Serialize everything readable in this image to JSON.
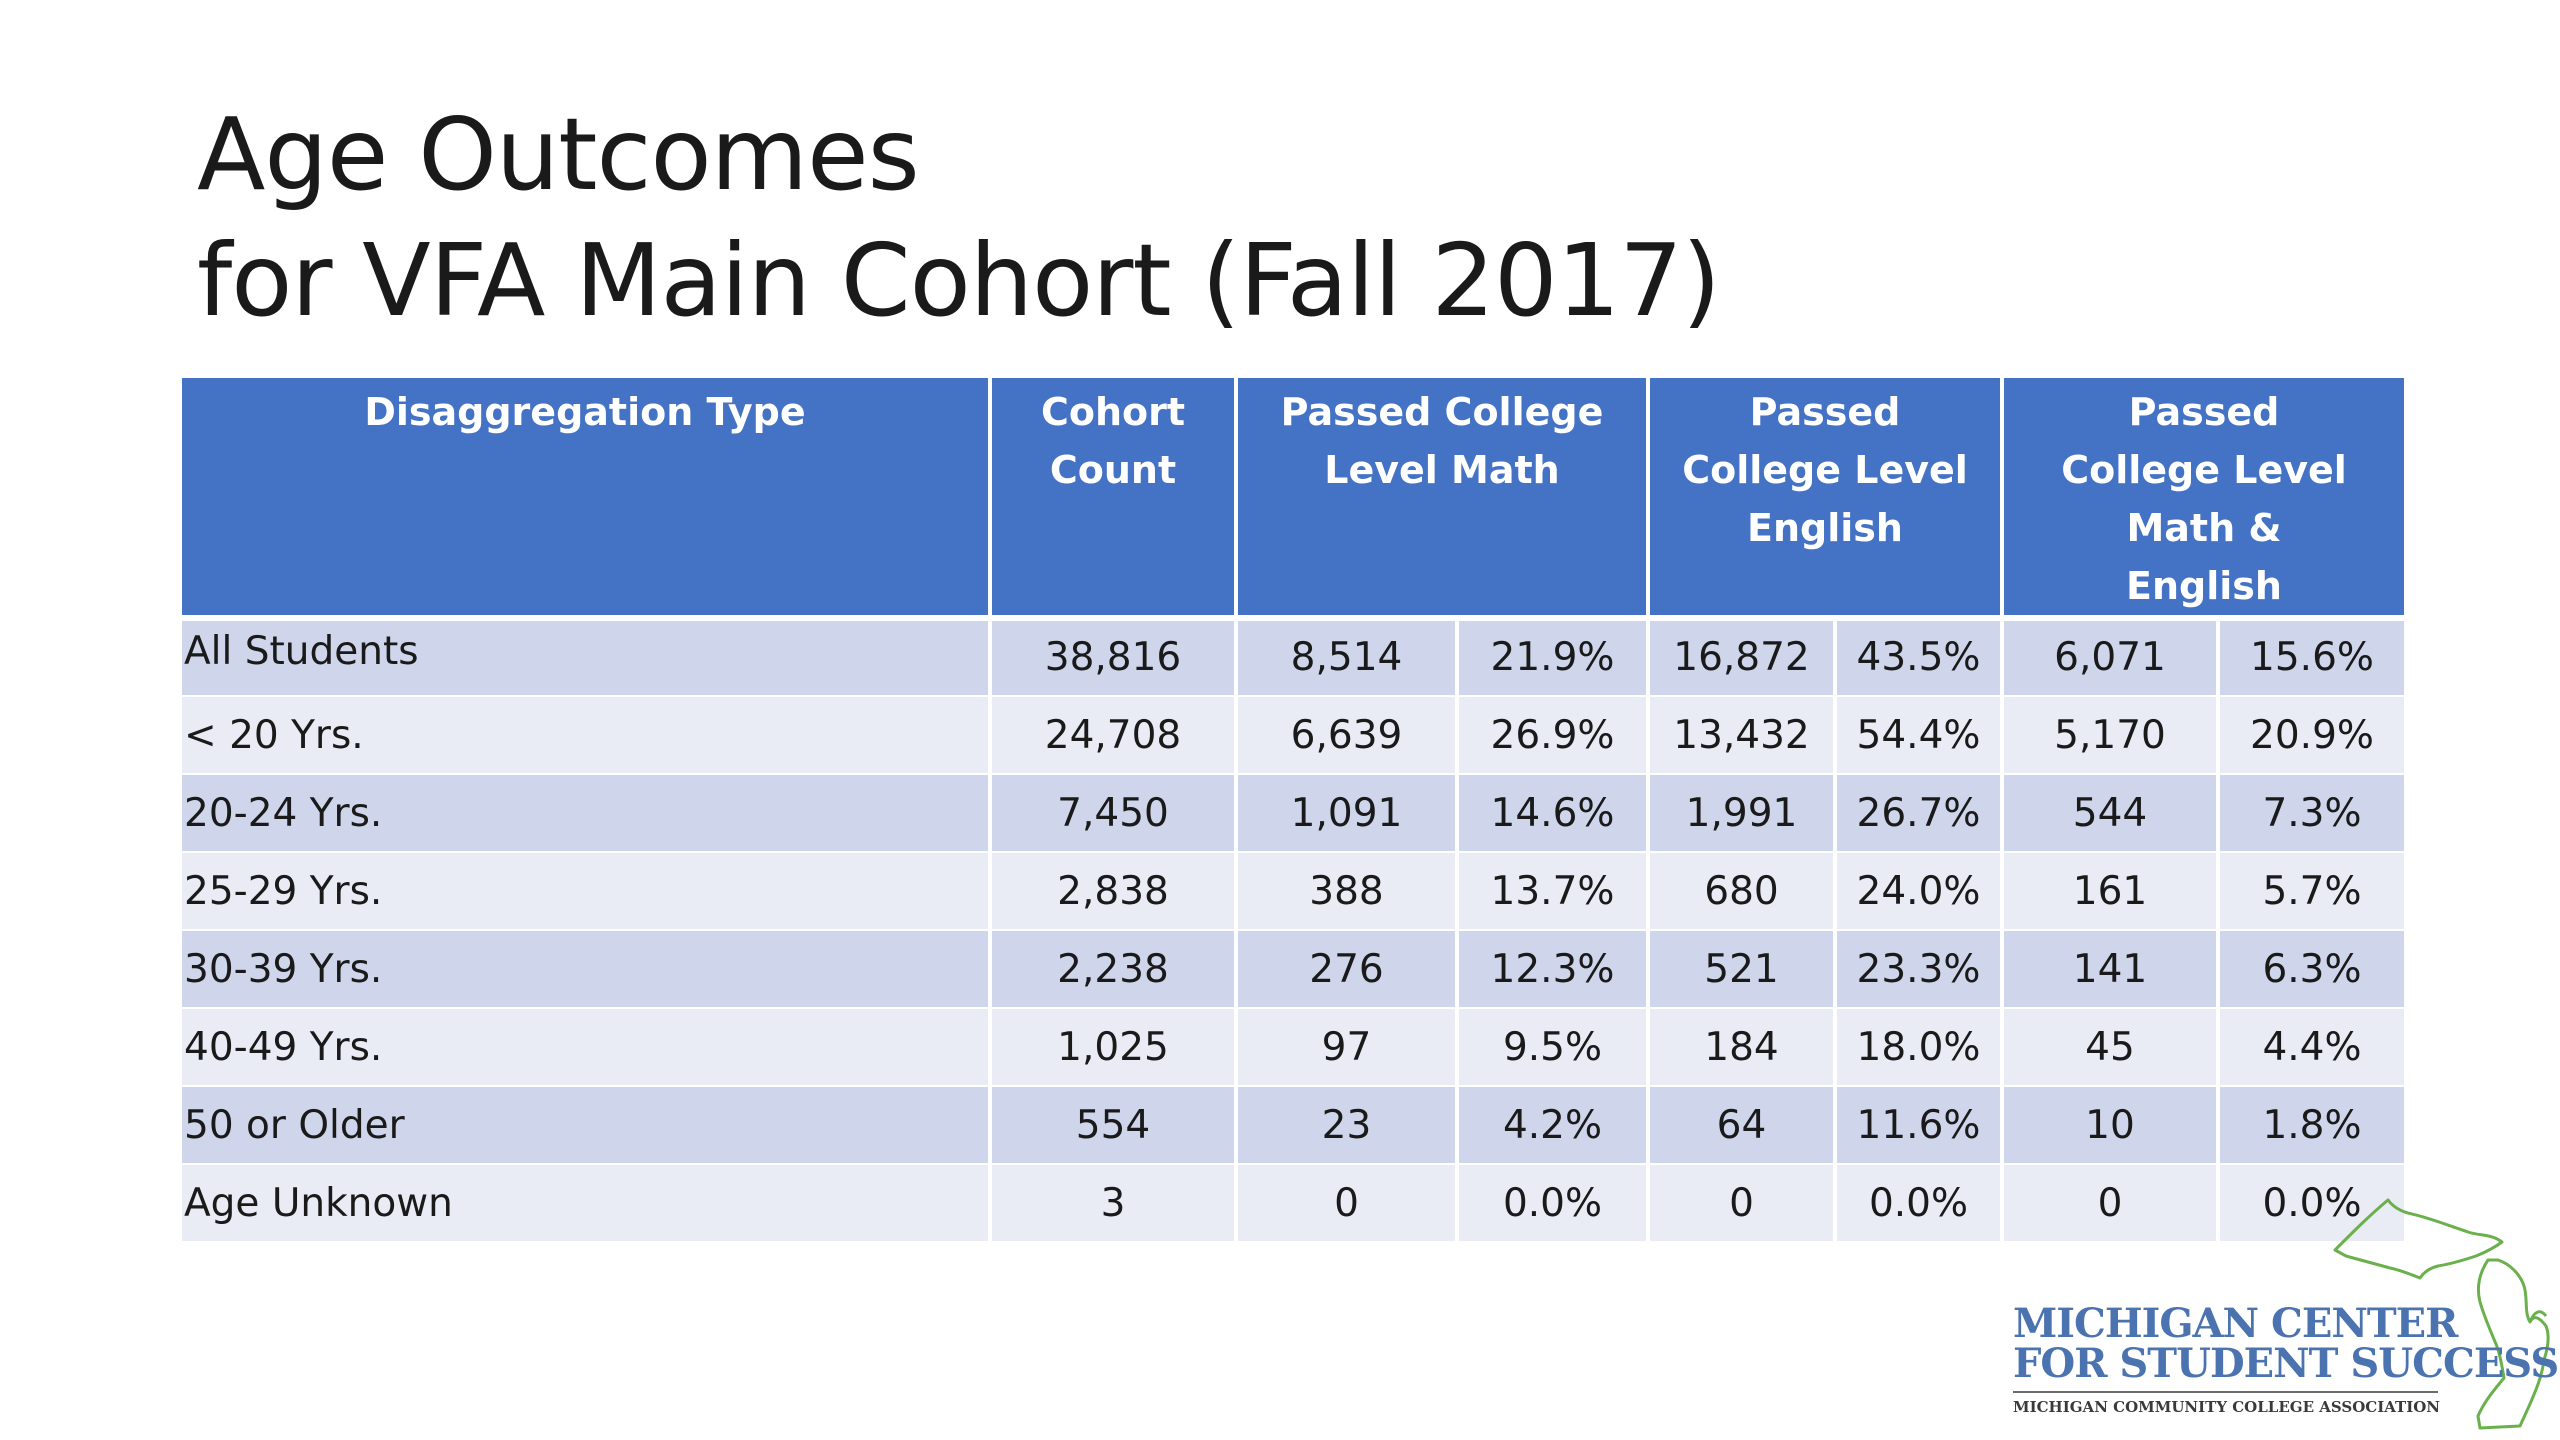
{
  "title": {
    "line1": "Age Outcomes",
    "line2": "for VFA Main Cohort (Fall 2017)"
  },
  "table": {
    "headers": {
      "type": "Disaggregation Type",
      "cohort": "Cohort Count",
      "math": "Passed College Level Math",
      "english": "Passed College Level English",
      "both": "Passed College Level Math & English"
    },
    "rows": [
      {
        "label": "All Students",
        "cohort": "38,816",
        "math_n": "8,514",
        "math_pct": "21.9%",
        "eng_n": "16,872",
        "eng_pct": "43.5%",
        "both_n": "6,071",
        "both_pct": "15.6%"
      },
      {
        "label": "< 20 Yrs.",
        "cohort": "24,708",
        "math_n": "6,639",
        "math_pct": "26.9%",
        "eng_n": "13,432",
        "eng_pct": "54.4%",
        "both_n": "5,170",
        "both_pct": "20.9%"
      },
      {
        "label": "20-24 Yrs.",
        "cohort": "7,450",
        "math_n": "1,091",
        "math_pct": "14.6%",
        "eng_n": "1,991",
        "eng_pct": "26.7%",
        "both_n": "544",
        "both_pct": "7.3%"
      },
      {
        "label": "25-29 Yrs.",
        "cohort": "2,838",
        "math_n": "388",
        "math_pct": "13.7%",
        "eng_n": "680",
        "eng_pct": "24.0%",
        "both_n": "161",
        "both_pct": "5.7%"
      },
      {
        "label": "30-39 Yrs.",
        "cohort": "2,238",
        "math_n": "276",
        "math_pct": "12.3%",
        "eng_n": "521",
        "eng_pct": "23.3%",
        "both_n": "141",
        "both_pct": "6.3%"
      },
      {
        "label": "40-49 Yrs.",
        "cohort": "1,025",
        "math_n": "97",
        "math_pct": "9.5%",
        "eng_n": "184",
        "eng_pct": "18.0%",
        "both_n": "45",
        "both_pct": "4.4%"
      },
      {
        "label": "50 or Older",
        "cohort": "554",
        "math_n": "23",
        "math_pct": "4.2%",
        "eng_n": "64",
        "eng_pct": "11.6%",
        "both_n": "10",
        "both_pct": "1.8%"
      },
      {
        "label": "Age Unknown",
        "cohort": "3",
        "math_n": "0",
        "math_pct": "0.0%",
        "eng_n": "0",
        "eng_pct": "0.0%",
        "both_n": "0",
        "both_pct": "0.0%"
      }
    ]
  },
  "logo": {
    "line1": "MICHIGAN CENTER",
    "line2": "FOR STUDENT SUCCESS",
    "subtitle": "MICHIGAN COMMUNITY COLLEGE ASSOCIATION",
    "icon": "michigan-map-icon",
    "text_color": "#4a73b0",
    "outline_color": "#6ab04c"
  },
  "colors": {
    "header_bg": "#4472c4",
    "row_odd": "#cfd5ea",
    "row_even": "#e9ebf5"
  }
}
